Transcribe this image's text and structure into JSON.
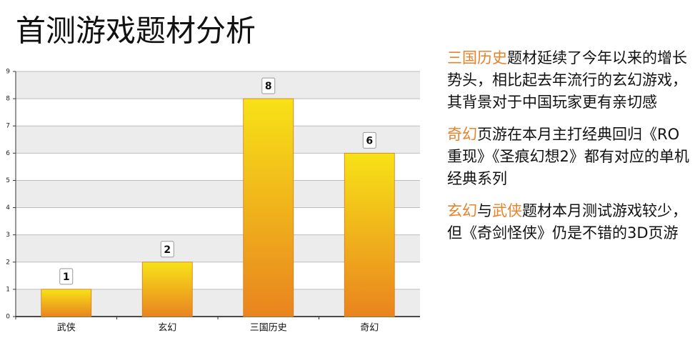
{
  "chart_data": {
    "type": "bar",
    "title": "首测游戏题材分析",
    "categories": [
      "武侠",
      "玄幻",
      "三国历史",
      "奇幻"
    ],
    "values": [
      1,
      2,
      8,
      6
    ],
    "ylim": [
      0,
      9
    ],
    "yticks": [
      0,
      1,
      2,
      3,
      4,
      5,
      6,
      7,
      8,
      9
    ],
    "grid": true,
    "annotations": [
      {
        "runs": [
          {
            "text": "三国历史",
            "color": "#e8822a"
          },
          {
            "text": "题材延续了今年以来的增长势头，相比起去年流行的玄幻游戏，其背景对于中国玩家更有亲切感",
            "color": "#111111"
          }
        ]
      },
      {
        "runs": [
          {
            "text": "奇幻",
            "color": "#e8822a"
          },
          {
            "text": "页游在本月主打经典回归《RO重现》《圣痕幻想2》都有对应的单机经典系列",
            "color": "#111111"
          }
        ]
      },
      {
        "runs": [
          {
            "text": "玄幻",
            "color": "#e8822a"
          },
          {
            "text": "与",
            "color": "#111111"
          },
          {
            "text": "武侠",
            "color": "#e8822a"
          },
          {
            "text": "题材本月测试游戏较少，但《奇剑怪侠》仍是不错的3D页游",
            "color": "#111111"
          }
        ]
      }
    ]
  }
}
